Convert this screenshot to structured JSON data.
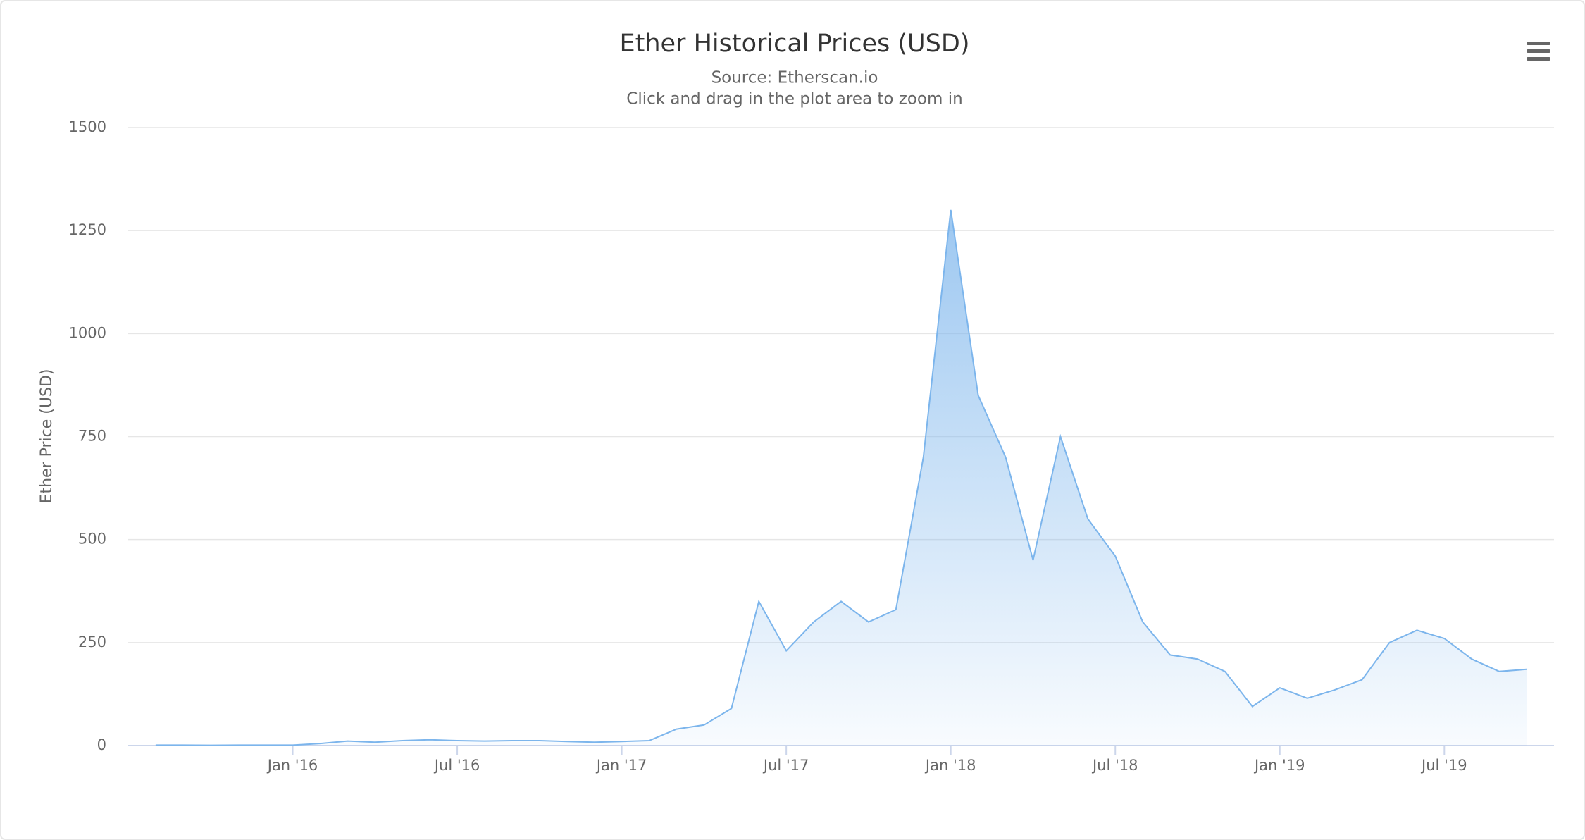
{
  "chart_data": {
    "type": "area",
    "title": "Ether Historical Prices (USD)",
    "subtitle": "Source: Etherscan.io",
    "instruction": "Click and drag in the plot area to zoom in",
    "y_label": "Ether Price (USD)",
    "color": "#7cb5ec",
    "x": [
      "2015-08",
      "2015-09",
      "2015-10",
      "2015-11",
      "2015-12",
      "2016-01",
      "2016-02",
      "2016-03",
      "2016-04",
      "2016-05",
      "2016-06",
      "2016-07",
      "2016-08",
      "2016-09",
      "2016-10",
      "2016-11",
      "2016-12",
      "2017-01",
      "2017-02",
      "2017-03",
      "2017-04",
      "2017-05",
      "2017-06",
      "2017-07",
      "2017-08",
      "2017-09",
      "2017-10",
      "2017-11",
      "2017-12",
      "2018-01",
      "2018-02",
      "2018-03",
      "2018-04",
      "2018-05",
      "2018-06",
      "2018-07",
      "2018-08",
      "2018-09",
      "2018-10",
      "2018-11",
      "2018-12",
      "2019-01",
      "2019-02",
      "2019-03",
      "2019-04",
      "2019-05",
      "2019-06",
      "2019-07",
      "2019-08",
      "2019-09",
      "2019-10"
    ],
    "values": [
      1,
      1,
      0.7,
      1,
      1,
      1,
      5,
      11,
      8,
      12,
      14,
      12,
      11,
      12,
      12,
      10,
      8,
      10,
      12,
      40,
      50,
      90,
      350,
      230,
      300,
      350,
      300,
      330,
      700,
      1300,
      850,
      700,
      450,
      750,
      550,
      460,
      300,
      220,
      210,
      180,
      95,
      140,
      115,
      135,
      160,
      250,
      280,
      260,
      210,
      180,
      185
    ],
    "xlim": [
      "2015-07",
      "2019-11"
    ],
    "xticks": [
      {
        "value": "2016-01",
        "label": "Jan '16"
      },
      {
        "value": "2016-07",
        "label": "Jul '16"
      },
      {
        "value": "2017-01",
        "label": "Jan '17"
      },
      {
        "value": "2017-07",
        "label": "Jul '17"
      },
      {
        "value": "2018-01",
        "label": "Jan '18"
      },
      {
        "value": "2018-07",
        "label": "Jul '18"
      },
      {
        "value": "2019-01",
        "label": "Jan '19"
      },
      {
        "value": "2019-07",
        "label": "Jul '19"
      }
    ],
    "ylim": [
      0,
      1500
    ],
    "yticks": [
      0,
      250,
      500,
      750,
      1000,
      1250,
      1500
    ],
    "grid": true
  }
}
